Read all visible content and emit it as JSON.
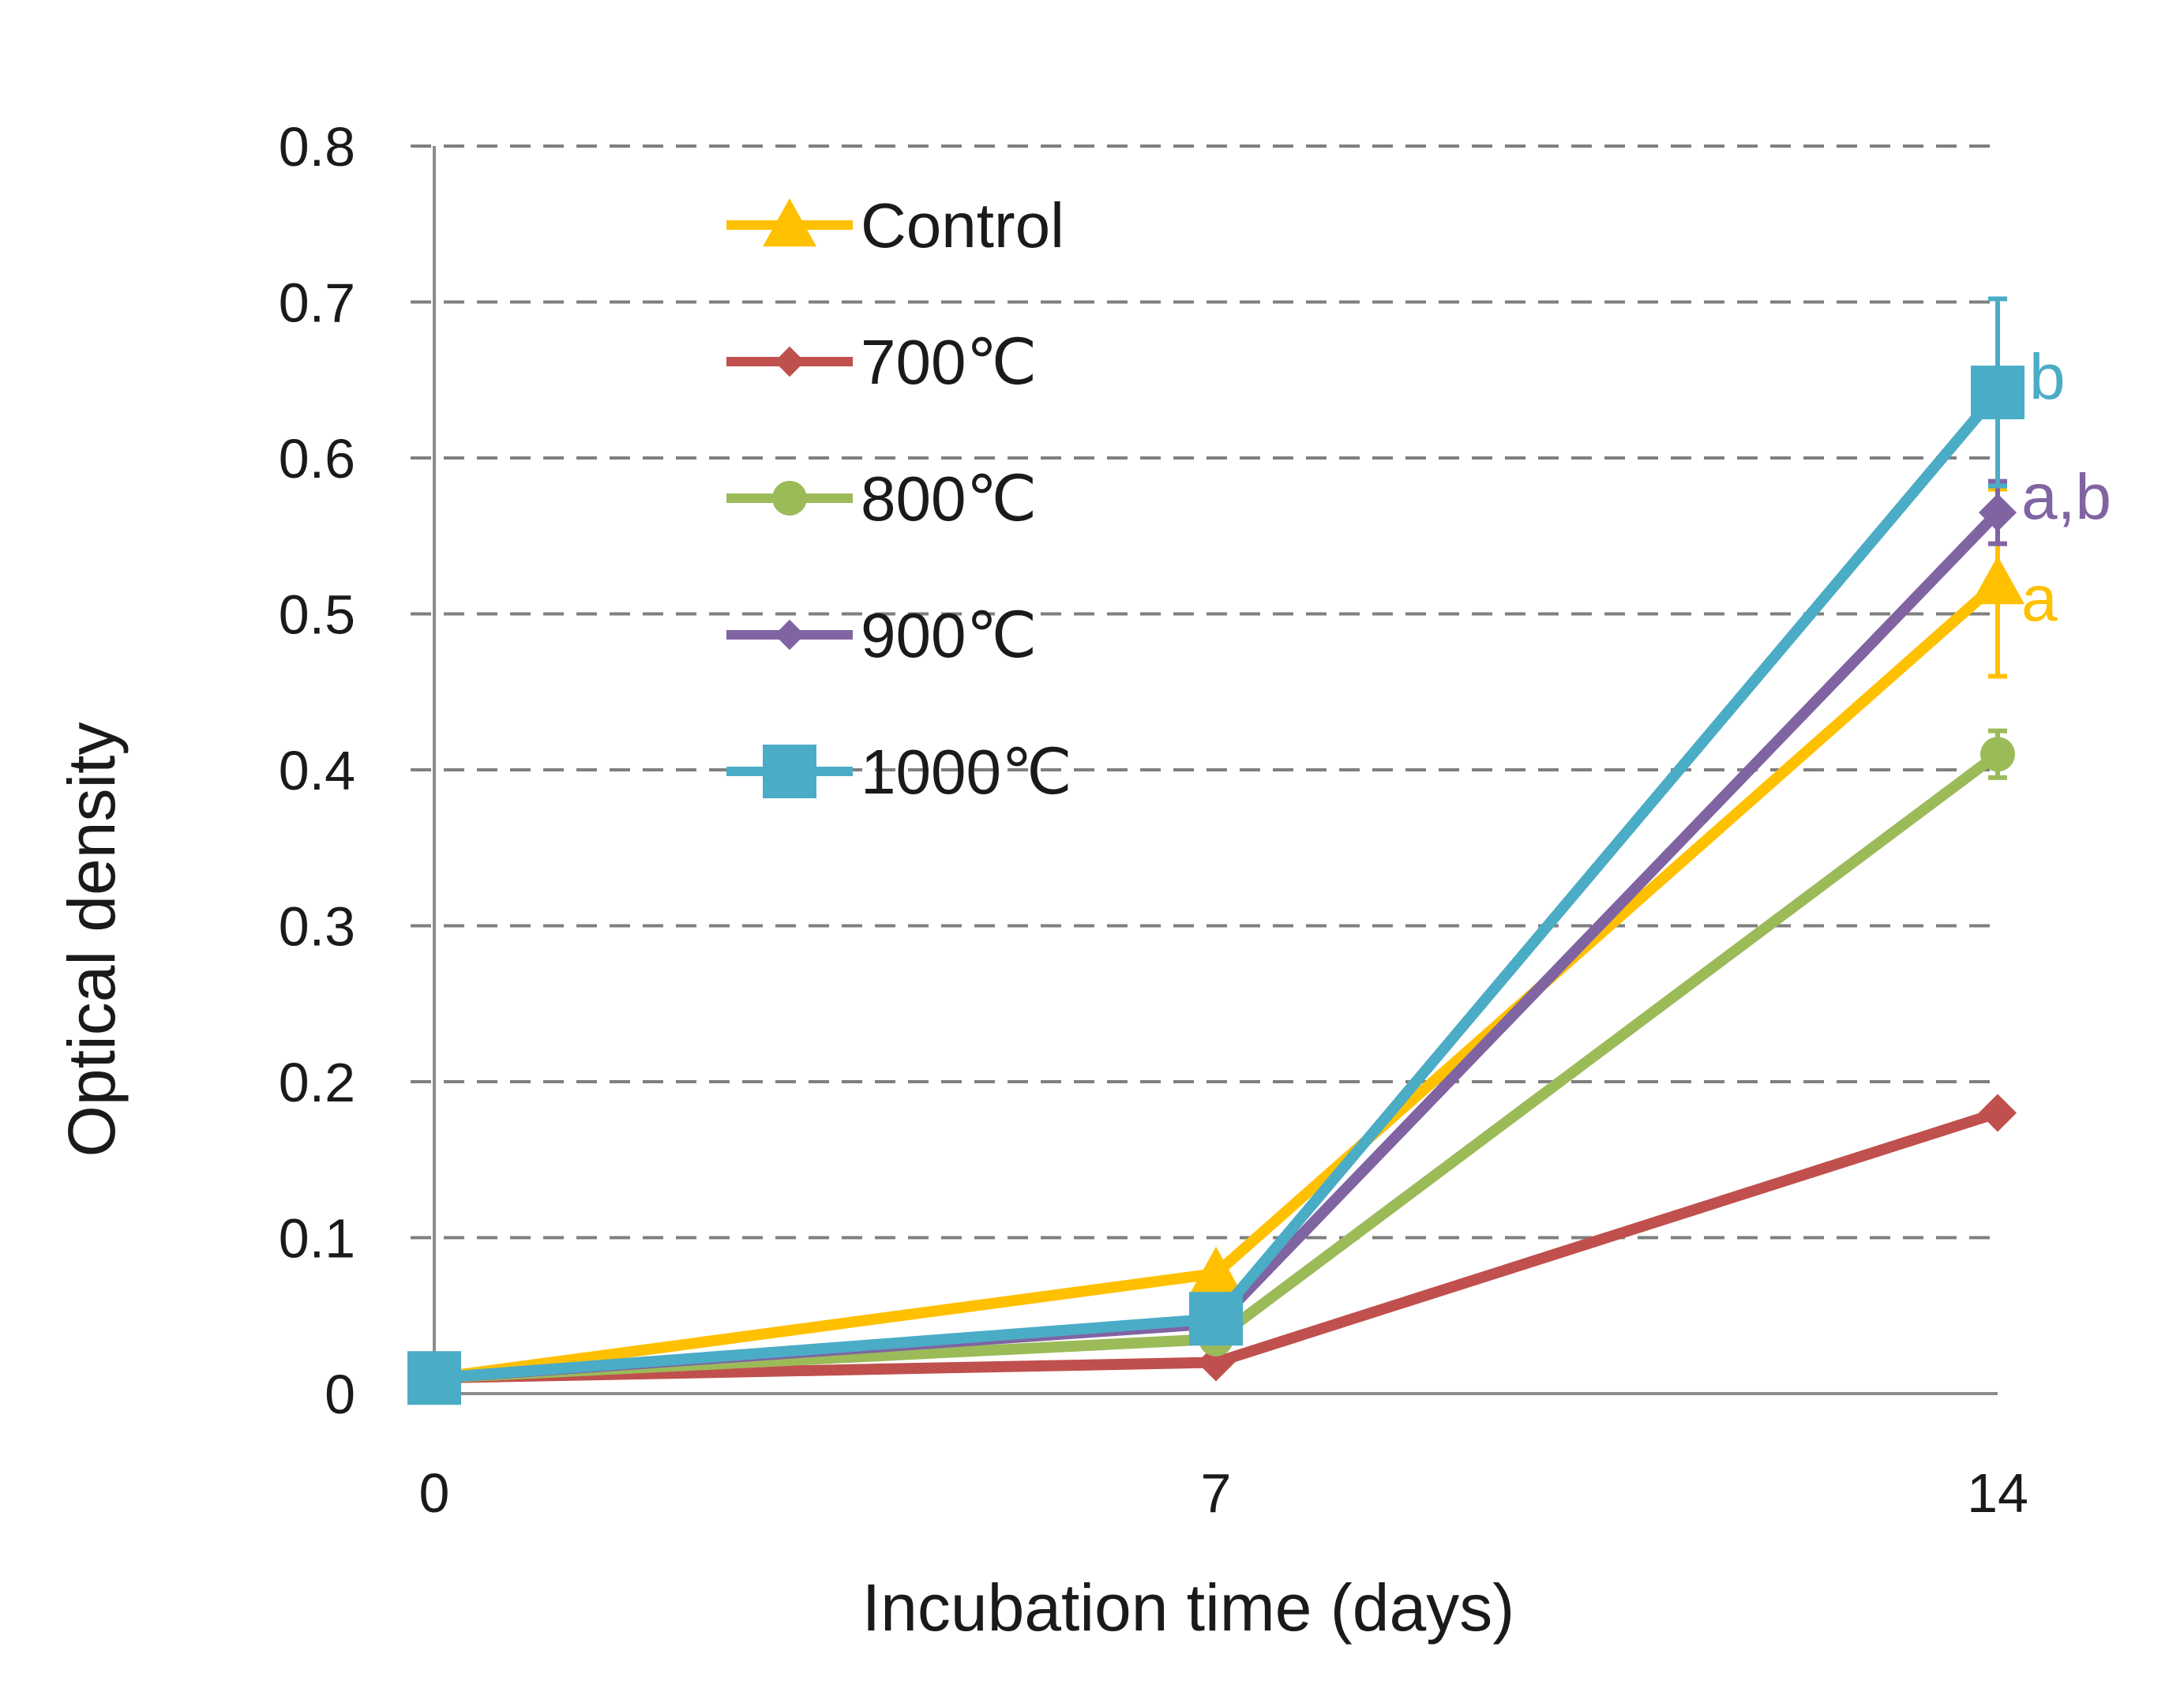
{
  "chart_data": {
    "type": "line",
    "title": "",
    "xlabel": "Incubation time (days)",
    "ylabel": "Optical density",
    "x": [
      0,
      7,
      14
    ],
    "x_tick_labels": [
      "0",
      "7",
      "14"
    ],
    "ylim": [
      0,
      0.8
    ],
    "y_ticks": [
      0,
      0.1,
      0.2,
      0.3,
      0.4,
      0.5,
      0.6,
      0.7,
      0.8
    ],
    "y_tick_labels": [
      "0",
      "0.1",
      "0.2",
      "0.3",
      "0.4",
      "0.5",
      "0.6",
      "0.7",
      "0.8"
    ],
    "grid": true,
    "legend_position": "top-left",
    "series": [
      {
        "name": "Control",
        "color": "#FFC000",
        "marker": "triangle",
        "values": [
          0.01,
          0.077,
          0.52
        ],
        "error_at_end": 0.06,
        "significance": "a"
      },
      {
        "name": "700℃",
        "color": "#C0504D",
        "marker": "diamond",
        "values": [
          0.01,
          0.02,
          0.18
        ],
        "error_at_end": 0.0,
        "significance": ""
      },
      {
        "name": "800℃",
        "color": "#9BBB59",
        "marker": "circle",
        "values": [
          0.01,
          0.035,
          0.41
        ],
        "error_at_end": 0.015,
        "significance": ""
      },
      {
        "name": "900℃",
        "color": "#8064A2",
        "marker": "diamond",
        "values": [
          0.01,
          0.045,
          0.565
        ],
        "error_at_end": 0.02,
        "significance": "a,b"
      },
      {
        "name": "1000℃",
        "color": "#4BACC6",
        "marker": "square",
        "values": [
          0.01,
          0.048,
          0.642
        ],
        "error_at_end": 0.06,
        "significance": "b"
      }
    ]
  }
}
